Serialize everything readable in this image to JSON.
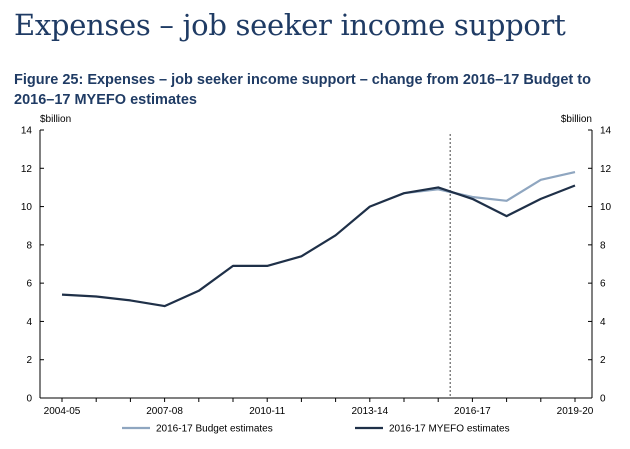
{
  "page": {
    "heading": "Expenses – job seeker income support"
  },
  "chart_data": {
    "type": "line",
    "title": "Figure 25: Expenses – job seeker income support – change from 2016–17 Budget to 2016–17 MYEFO estimates",
    "y_unit_left": "$billion",
    "y_unit_right": "$billion",
    "ylim": [
      0,
      14
    ],
    "y_ticks": [
      0,
      2,
      4,
      6,
      8,
      10,
      12,
      14
    ],
    "x_range": [
      0,
      16
    ],
    "x_ticks": [
      {
        "x": 0,
        "label": "2004-05"
      },
      {
        "x": 3,
        "label": "2007-08"
      },
      {
        "x": 6,
        "label": "2010-11"
      },
      {
        "x": 9,
        "label": "2013-14"
      },
      {
        "x": 12,
        "label": "2016-17"
      },
      {
        "x": 15,
        "label": "2019-20"
      }
    ],
    "divider_x": 11.35,
    "grid": false,
    "legend_position": "bottom",
    "series": [
      {
        "name": "2016-17 Budget estimates",
        "color": "#8fa6c0",
        "points": [
          [
            10,
            10.7
          ],
          [
            11,
            10.9
          ],
          [
            12,
            10.5
          ],
          [
            13,
            10.3
          ],
          [
            14,
            11.4
          ],
          [
            15,
            11.8
          ]
        ]
      },
      {
        "name": "2016-17 MYEFO estimates",
        "color": "#1f3048",
        "points": [
          [
            0,
            5.4
          ],
          [
            1,
            5.3
          ],
          [
            2,
            5.1
          ],
          [
            3,
            4.8
          ],
          [
            4,
            5.6
          ],
          [
            5,
            6.9
          ],
          [
            6,
            6.9
          ],
          [
            7,
            7.4
          ],
          [
            8,
            8.5
          ],
          [
            9,
            10.0
          ],
          [
            10,
            10.7
          ],
          [
            11,
            11.0
          ],
          [
            12,
            10.4
          ],
          [
            13,
            9.5
          ],
          [
            14,
            10.4
          ],
          [
            15,
            11.1
          ]
        ]
      }
    ]
  }
}
